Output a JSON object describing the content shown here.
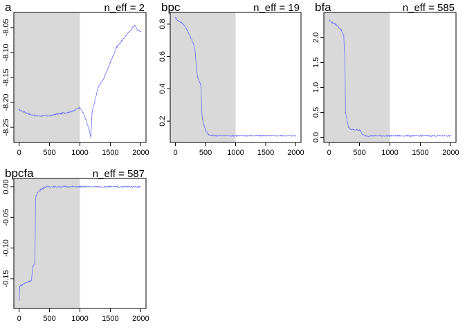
{
  "chart_data": [
    {
      "type": "line",
      "title": "a",
      "annotation": "n_eff = 2",
      "xlim": [
        0,
        2000
      ],
      "ylim": [
        -8.27,
        -8.03
      ],
      "xticks": [
        "0",
        "500",
        "1000",
        "1500",
        "2000"
      ],
      "yticks": [
        "-8.25",
        "-8.20",
        "-8.15",
        "-8.10",
        "-8.05"
      ],
      "warmup_end": 1000,
      "series_color": "#6b6bff",
      "shade_color": "#d9d9d9",
      "x": [
        0,
        100,
        200,
        300,
        400,
        500,
        600,
        700,
        800,
        900,
        950,
        1000,
        1050,
        1100,
        1150,
        1180,
        1200,
        1300,
        1400,
        1500,
        1600,
        1700,
        1800,
        1900,
        1950,
        2000
      ],
      "y": [
        -8.215,
        -8.22,
        -8.225,
        -8.227,
        -8.227,
        -8.227,
        -8.224,
        -8.222,
        -8.22,
        -8.217,
        -8.213,
        -8.21,
        -8.22,
        -8.235,
        -8.255,
        -8.27,
        -8.22,
        -8.17,
        -8.15,
        -8.12,
        -8.09,
        -8.075,
        -8.06,
        -8.045,
        -8.055,
        -8.058
      ]
    },
    {
      "type": "line",
      "title": "bpc",
      "annotation": "n_eff = 19",
      "xlim": [
        0,
        2000
      ],
      "ylim": [
        0.1,
        0.84
      ],
      "xticks": [
        "0",
        "500",
        "1000",
        "1500",
        "2000"
      ],
      "yticks": [
        "0.2",
        "0.4",
        "0.6",
        "0.8"
      ],
      "warmup_end": 1000,
      "series_color": "#6b6bff",
      "shade_color": "#d9d9d9",
      "x": [
        0,
        50,
        100,
        150,
        200,
        250,
        300,
        330,
        350,
        370,
        400,
        420,
        440,
        450,
        480,
        500,
        550,
        600,
        700,
        1000,
        1500,
        2000
      ],
      "y": [
        0.84,
        0.82,
        0.81,
        0.79,
        0.76,
        0.72,
        0.68,
        0.62,
        0.52,
        0.47,
        0.44,
        0.43,
        0.25,
        0.21,
        0.17,
        0.14,
        0.115,
        0.112,
        0.11,
        0.11,
        0.11,
        0.11
      ]
    },
    {
      "type": "line",
      "title": "bfa",
      "annotation": "n_eff = 585",
      "xlim": [
        0,
        2000
      ],
      "ylim": [
        0,
        2.4
      ],
      "xticks": [
        "0",
        "500",
        "1000",
        "1500",
        "2000"
      ],
      "yticks": [
        "0.0",
        "0.5",
        "1.0",
        "1.5",
        "2.0"
      ],
      "warmup_end": 1000,
      "series_color": "#6b6bff",
      "shade_color": "#d9d9d9",
      "x": [
        0,
        50,
        100,
        150,
        200,
        240,
        260,
        270,
        300,
        320,
        350,
        400,
        450,
        500,
        520,
        550,
        600,
        800,
        1000,
        1500,
        2000
      ],
      "y": [
        2.35,
        2.3,
        2.27,
        2.22,
        2.15,
        2.05,
        1.5,
        0.5,
        0.3,
        0.2,
        0.16,
        0.15,
        0.15,
        0.15,
        0.12,
        0.05,
        0.03,
        0.03,
        0.03,
        0.03,
        0.03
      ]
    },
    {
      "type": "line",
      "title": "bpcfa",
      "annotation": "n_eff = 587",
      "xlim": [
        0,
        2000
      ],
      "ylim": [
        -0.19,
        0.005
      ],
      "xticks": [
        "0",
        "500",
        "1000",
        "1500",
        "2000"
      ],
      "yticks": [
        "-0.15",
        "-0.10",
        "-0.05",
        "0.00"
      ],
      "warmup_end": 1000,
      "series_color": "#6b6bff",
      "shade_color": "#d9d9d9",
      "x": [
        0,
        10,
        50,
        100,
        150,
        200,
        230,
        260,
        270,
        280,
        300,
        350,
        400,
        450,
        500,
        1000,
        1500,
        2000
      ],
      "y": [
        -0.185,
        -0.162,
        -0.16,
        -0.157,
        -0.155,
        -0.153,
        -0.13,
        -0.125,
        -0.02,
        -0.015,
        -0.01,
        -0.005,
        -0.002,
        0,
        0,
        0,
        0,
        0
      ]
    }
  ]
}
